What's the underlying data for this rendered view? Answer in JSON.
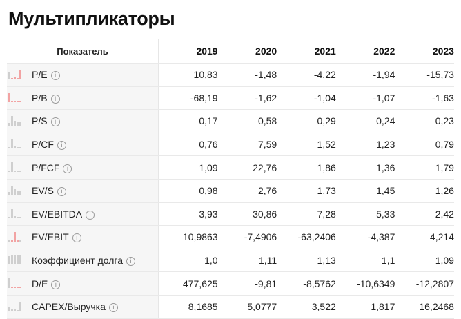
{
  "title": "Мультипликаторы",
  "table": {
    "header": {
      "label": "Показатель",
      "years": [
        "2019",
        "2020",
        "2021",
        "2022",
        "2023"
      ]
    },
    "rows": [
      {
        "label": "P/E",
        "values": [
          "10,83",
          "-1,48",
          "-4,22",
          "-1,94",
          "-15,73"
        ]
      },
      {
        "label": "P/B",
        "values": [
          "-68,19",
          "-1,62",
          "-1,04",
          "-1,07",
          "-1,63"
        ]
      },
      {
        "label": "P/S",
        "values": [
          "0,17",
          "0,58",
          "0,29",
          "0,24",
          "0,23"
        ]
      },
      {
        "label": "P/CF",
        "values": [
          "0,76",
          "7,59",
          "1,52",
          "1,23",
          "0,79"
        ]
      },
      {
        "label": "P/FCF",
        "values": [
          "1,09",
          "22,76",
          "1,86",
          "1,36",
          "1,79"
        ]
      },
      {
        "label": "EV/S",
        "values": [
          "0,98",
          "2,76",
          "1,73",
          "1,45",
          "1,26"
        ]
      },
      {
        "label": "EV/EBITDA",
        "values": [
          "3,93",
          "30,86",
          "7,28",
          "5,33",
          "2,42"
        ]
      },
      {
        "label": "EV/EBIT",
        "values": [
          "10,9863",
          "-7,4906",
          "-63,2406",
          "-4,387",
          "4,214"
        ]
      },
      {
        "label": "Коэффициент долга",
        "values": [
          "1,0",
          "1,11",
          "1,13",
          "1,1",
          "1,09"
        ]
      },
      {
        "label": "D/E",
        "values": [
          "477,625",
          "-9,81",
          "-8,5762",
          "-10,6349",
          "-12,2807"
        ]
      },
      {
        "label": "CAPEX/Выручка",
        "values": [
          "8,1685",
          "5,0777",
          "3,522",
          "1,817",
          "16,2468"
        ]
      }
    ],
    "info_glyph": "i",
    "colors": {
      "positive_bar": "#cfcfcf",
      "negative_bar": "#f2a3a3"
    }
  }
}
